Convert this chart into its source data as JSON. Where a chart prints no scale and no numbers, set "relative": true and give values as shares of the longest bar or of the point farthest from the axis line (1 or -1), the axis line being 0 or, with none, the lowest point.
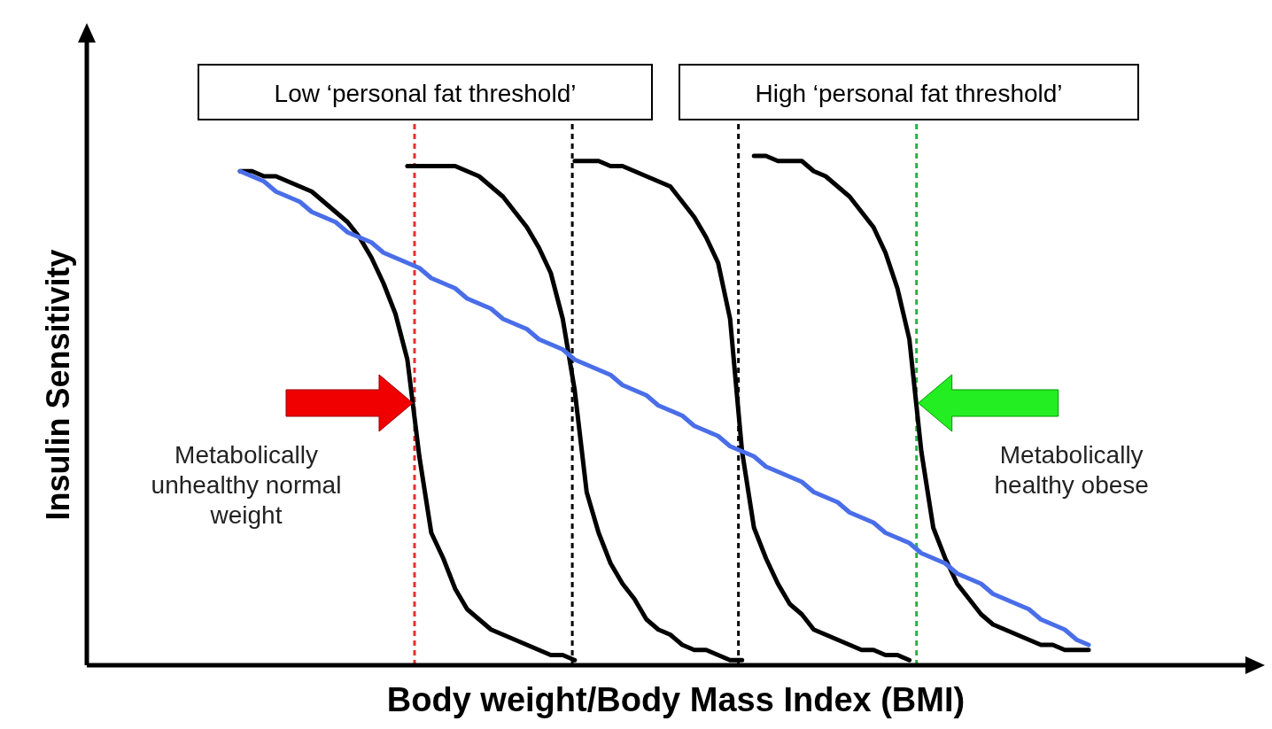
{
  "chart_data": {
    "type": "line",
    "relative": true,
    "xlabel": "Body weight/Body Mass Index (BMI)",
    "ylabel": "Insulin Sensitivity",
    "categories": [
      null,
      null,
      null,
      null,
      null,
      null,
      null,
      null,
      null,
      null,
      null,
      null,
      null,
      null,
      null,
      null,
      null,
      null,
      null,
      null,
      null,
      null,
      null,
      null,
      null,
      null,
      null,
      null,
      null,
      null,
      null,
      null,
      null,
      null,
      null,
      null,
      null,
      null,
      null,
      null,
      null,
      null,
      null,
      null,
      null,
      null,
      null,
      null,
      null,
      null,
      null,
      null,
      null,
      null,
      null,
      null,
      null,
      null,
      null,
      null,
      null,
      null,
      null,
      null,
      null,
      null,
      null,
      null,
      null,
      null,
      null,
      null
    ],
    "series": [
      {
        "color": "#000000",
        "values": [
          0.97,
          0.97,
          0.96,
          0.96,
          0.95,
          0.94,
          0.93,
          0.91,
          0.89,
          0.87,
          0.84,
          0.8,
          0.75,
          0.69,
          0.6,
          0.41,
          0.26,
          0.21,
          0.15,
          0.11,
          0.09,
          0.07,
          0.06,
          0.05,
          0.04,
          0.03,
          0.02,
          0.02,
          0.01,
          null,
          null,
          null,
          null,
          null,
          null,
          null,
          null,
          null,
          null,
          null,
          null,
          null,
          null,
          null,
          null,
          null,
          null,
          null,
          null,
          null,
          null,
          null,
          null,
          null,
          null,
          null,
          null,
          null,
          null,
          null,
          null,
          null,
          null,
          null,
          null,
          null,
          null,
          null,
          null,
          null,
          null,
          null
        ]
      },
      {
        "color": "#000000",
        "values": [
          null,
          null,
          null,
          null,
          null,
          null,
          null,
          null,
          null,
          null,
          null,
          null,
          null,
          null,
          0.98,
          0.98,
          0.98,
          0.98,
          0.98,
          0.97,
          0.96,
          0.94,
          0.92,
          0.89,
          0.86,
          0.82,
          0.77,
          0.68,
          0.54,
          0.34,
          0.26,
          0.2,
          0.16,
          0.13,
          0.09,
          0.07,
          0.06,
          0.04,
          0.03,
          0.03,
          0.02,
          0.01,
          0.01,
          null,
          null,
          null,
          null,
          null,
          null,
          null,
          null,
          null,
          null,
          null,
          null,
          null,
          null,
          null,
          null,
          null,
          null,
          null,
          null,
          null,
          null,
          null,
          null,
          null,
          null,
          null,
          null,
          null
        ]
      },
      {
        "color": "#000000",
        "values": [
          null,
          null,
          null,
          null,
          null,
          null,
          null,
          null,
          null,
          null,
          null,
          null,
          null,
          null,
          null,
          null,
          null,
          null,
          null,
          null,
          null,
          null,
          null,
          null,
          null,
          null,
          null,
          null,
          0.99,
          0.99,
          0.99,
          0.98,
          0.98,
          0.97,
          0.96,
          0.95,
          0.94,
          0.91,
          0.88,
          0.84,
          0.79,
          0.68,
          0.42,
          0.27,
          0.21,
          0.16,
          0.12,
          0.1,
          0.07,
          0.06,
          0.05,
          0.04,
          0.03,
          0.03,
          0.02,
          0.02,
          0.01,
          null,
          null,
          null,
          null,
          null,
          null,
          null,
          null,
          null,
          null,
          null,
          null,
          null,
          null,
          null
        ]
      },
      {
        "color": "#000000",
        "values": [
          null,
          null,
          null,
          null,
          null,
          null,
          null,
          null,
          null,
          null,
          null,
          null,
          null,
          null,
          null,
          null,
          null,
          null,
          null,
          null,
          null,
          null,
          null,
          null,
          null,
          null,
          null,
          null,
          null,
          null,
          null,
          null,
          null,
          null,
          null,
          null,
          null,
          null,
          null,
          null,
          null,
          null,
          null,
          1,
          1,
          0.99,
          0.99,
          0.99,
          0.97,
          0.96,
          0.94,
          0.92,
          0.89,
          0.86,
          0.81,
          0.74,
          0.64,
          0.42,
          0.27,
          0.21,
          0.16,
          0.13,
          0.1,
          0.08,
          0.07,
          0.06,
          0.05,
          0.04,
          0.04,
          0.03,
          0.03,
          0.03
        ]
      },
      {
        "color": "#4a6ee8",
        "values": [
          0.97,
          0.96,
          0.95,
          0.93,
          0.92,
          0.91,
          0.89,
          0.88,
          0.87,
          0.85,
          0.84,
          0.83,
          0.81,
          0.8,
          0.79,
          0.78,
          0.76,
          0.75,
          0.74,
          0.72,
          0.71,
          0.7,
          0.68,
          0.67,
          0.66,
          0.64,
          0.63,
          0.62,
          0.6,
          0.59,
          0.58,
          0.57,
          0.55,
          0.54,
          0.53,
          0.51,
          0.5,
          0.49,
          0.47,
          0.46,
          0.45,
          0.43,
          0.42,
          0.41,
          0.39,
          0.38,
          0.37,
          0.36,
          0.34,
          0.33,
          0.32,
          0.3,
          0.29,
          0.28,
          0.26,
          0.25,
          0.24,
          0.22,
          0.21,
          0.2,
          0.18,
          0.17,
          0.16,
          0.14,
          0.13,
          0.12,
          0.11,
          0.09,
          0.08,
          0.07,
          0.05,
          0.04
        ]
      }
    ],
    "annotations": [
      "Low ‘personal fat threshold’",
      "High ‘personal fat threshold’",
      "Metabolically unhealthy normal weight",
      "Metabolically healthy obese"
    ]
  }
}
